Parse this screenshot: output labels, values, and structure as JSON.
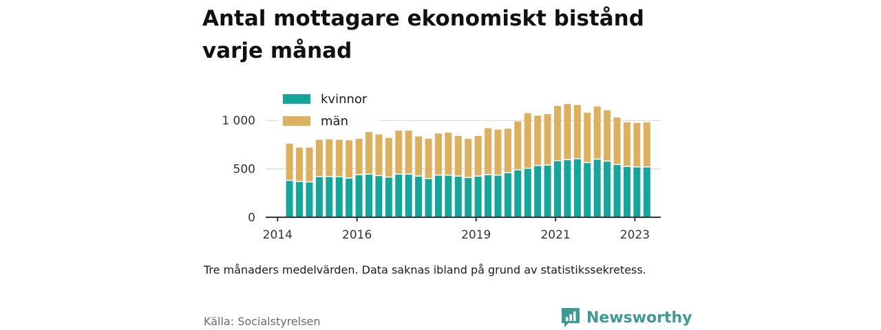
{
  "title": "Antal mottagare ekonomiskt bistånd varje månad",
  "caption": "Tre månaders medelvärden. Data saknas ibland på grund av statistikssekretess.",
  "source": "Källa: Socialstyrelsen",
  "brand": {
    "name": "Newsworthy",
    "logo_icon": "newsworthy-logo-icon",
    "color": "#3a9c93"
  },
  "colors": {
    "kvinnor": "#13a69a",
    "man": "#dcb05c",
    "gridline": "#d9d9d9",
    "axis": "#333333"
  },
  "chart_data": {
    "type": "bar",
    "stacked": true,
    "title": "Antal mottagare ekonomiskt bistånd varje månad",
    "xlabel": "",
    "ylabel": "",
    "ylim": [
      0,
      1250
    ],
    "yticks": [
      0,
      500,
      1000
    ],
    "ytick_labels": [
      "0",
      "500",
      "1 000"
    ],
    "xticks": [
      2014,
      2016,
      2019,
      2021,
      2023
    ],
    "xtick_labels": [
      "2014",
      "2016",
      "2019",
      "2021",
      "2023"
    ],
    "xlim": [
      2013.7,
      2023.65
    ],
    "grid": true,
    "legend": {
      "position": "top-left",
      "entries": [
        "kvinnor",
        "män"
      ]
    },
    "x": [
      2014.3,
      2014.55,
      2014.8,
      2015.05,
      2015.3,
      2015.55,
      2015.8,
      2016.05,
      2016.3,
      2016.55,
      2016.8,
      2017.05,
      2017.3,
      2017.55,
      2017.8,
      2018.05,
      2018.3,
      2018.55,
      2018.8,
      2019.05,
      2019.3,
      2019.55,
      2019.8,
      2020.05,
      2020.3,
      2020.55,
      2020.8,
      2021.05,
      2021.3,
      2021.55,
      2021.8,
      2022.05,
      2022.3,
      2022.55,
      2022.8,
      2023.05,
      2023.3
    ],
    "series": [
      {
        "name": "kvinnor",
        "values": [
          375,
          365,
          360,
          415,
          415,
          415,
          400,
          435,
          440,
          425,
          410,
          440,
          440,
          420,
          395,
          430,
          430,
          420,
          405,
          420,
          435,
          430,
          455,
          485,
          500,
          530,
          535,
          580,
          590,
          600,
          560,
          595,
          575,
          540,
          520,
          515,
          515
        ]
      },
      {
        "name": "män",
        "values": [
          385,
          355,
          360,
          385,
          390,
          385,
          395,
          375,
          445,
          430,
          410,
          455,
          455,
          415,
          415,
          435,
          445,
          420,
          405,
          420,
          485,
          475,
          460,
          505,
          575,
          520,
          530,
          570,
          580,
          560,
          520,
          550,
          530,
          490,
          460,
          460,
          465
        ]
      }
    ]
  }
}
